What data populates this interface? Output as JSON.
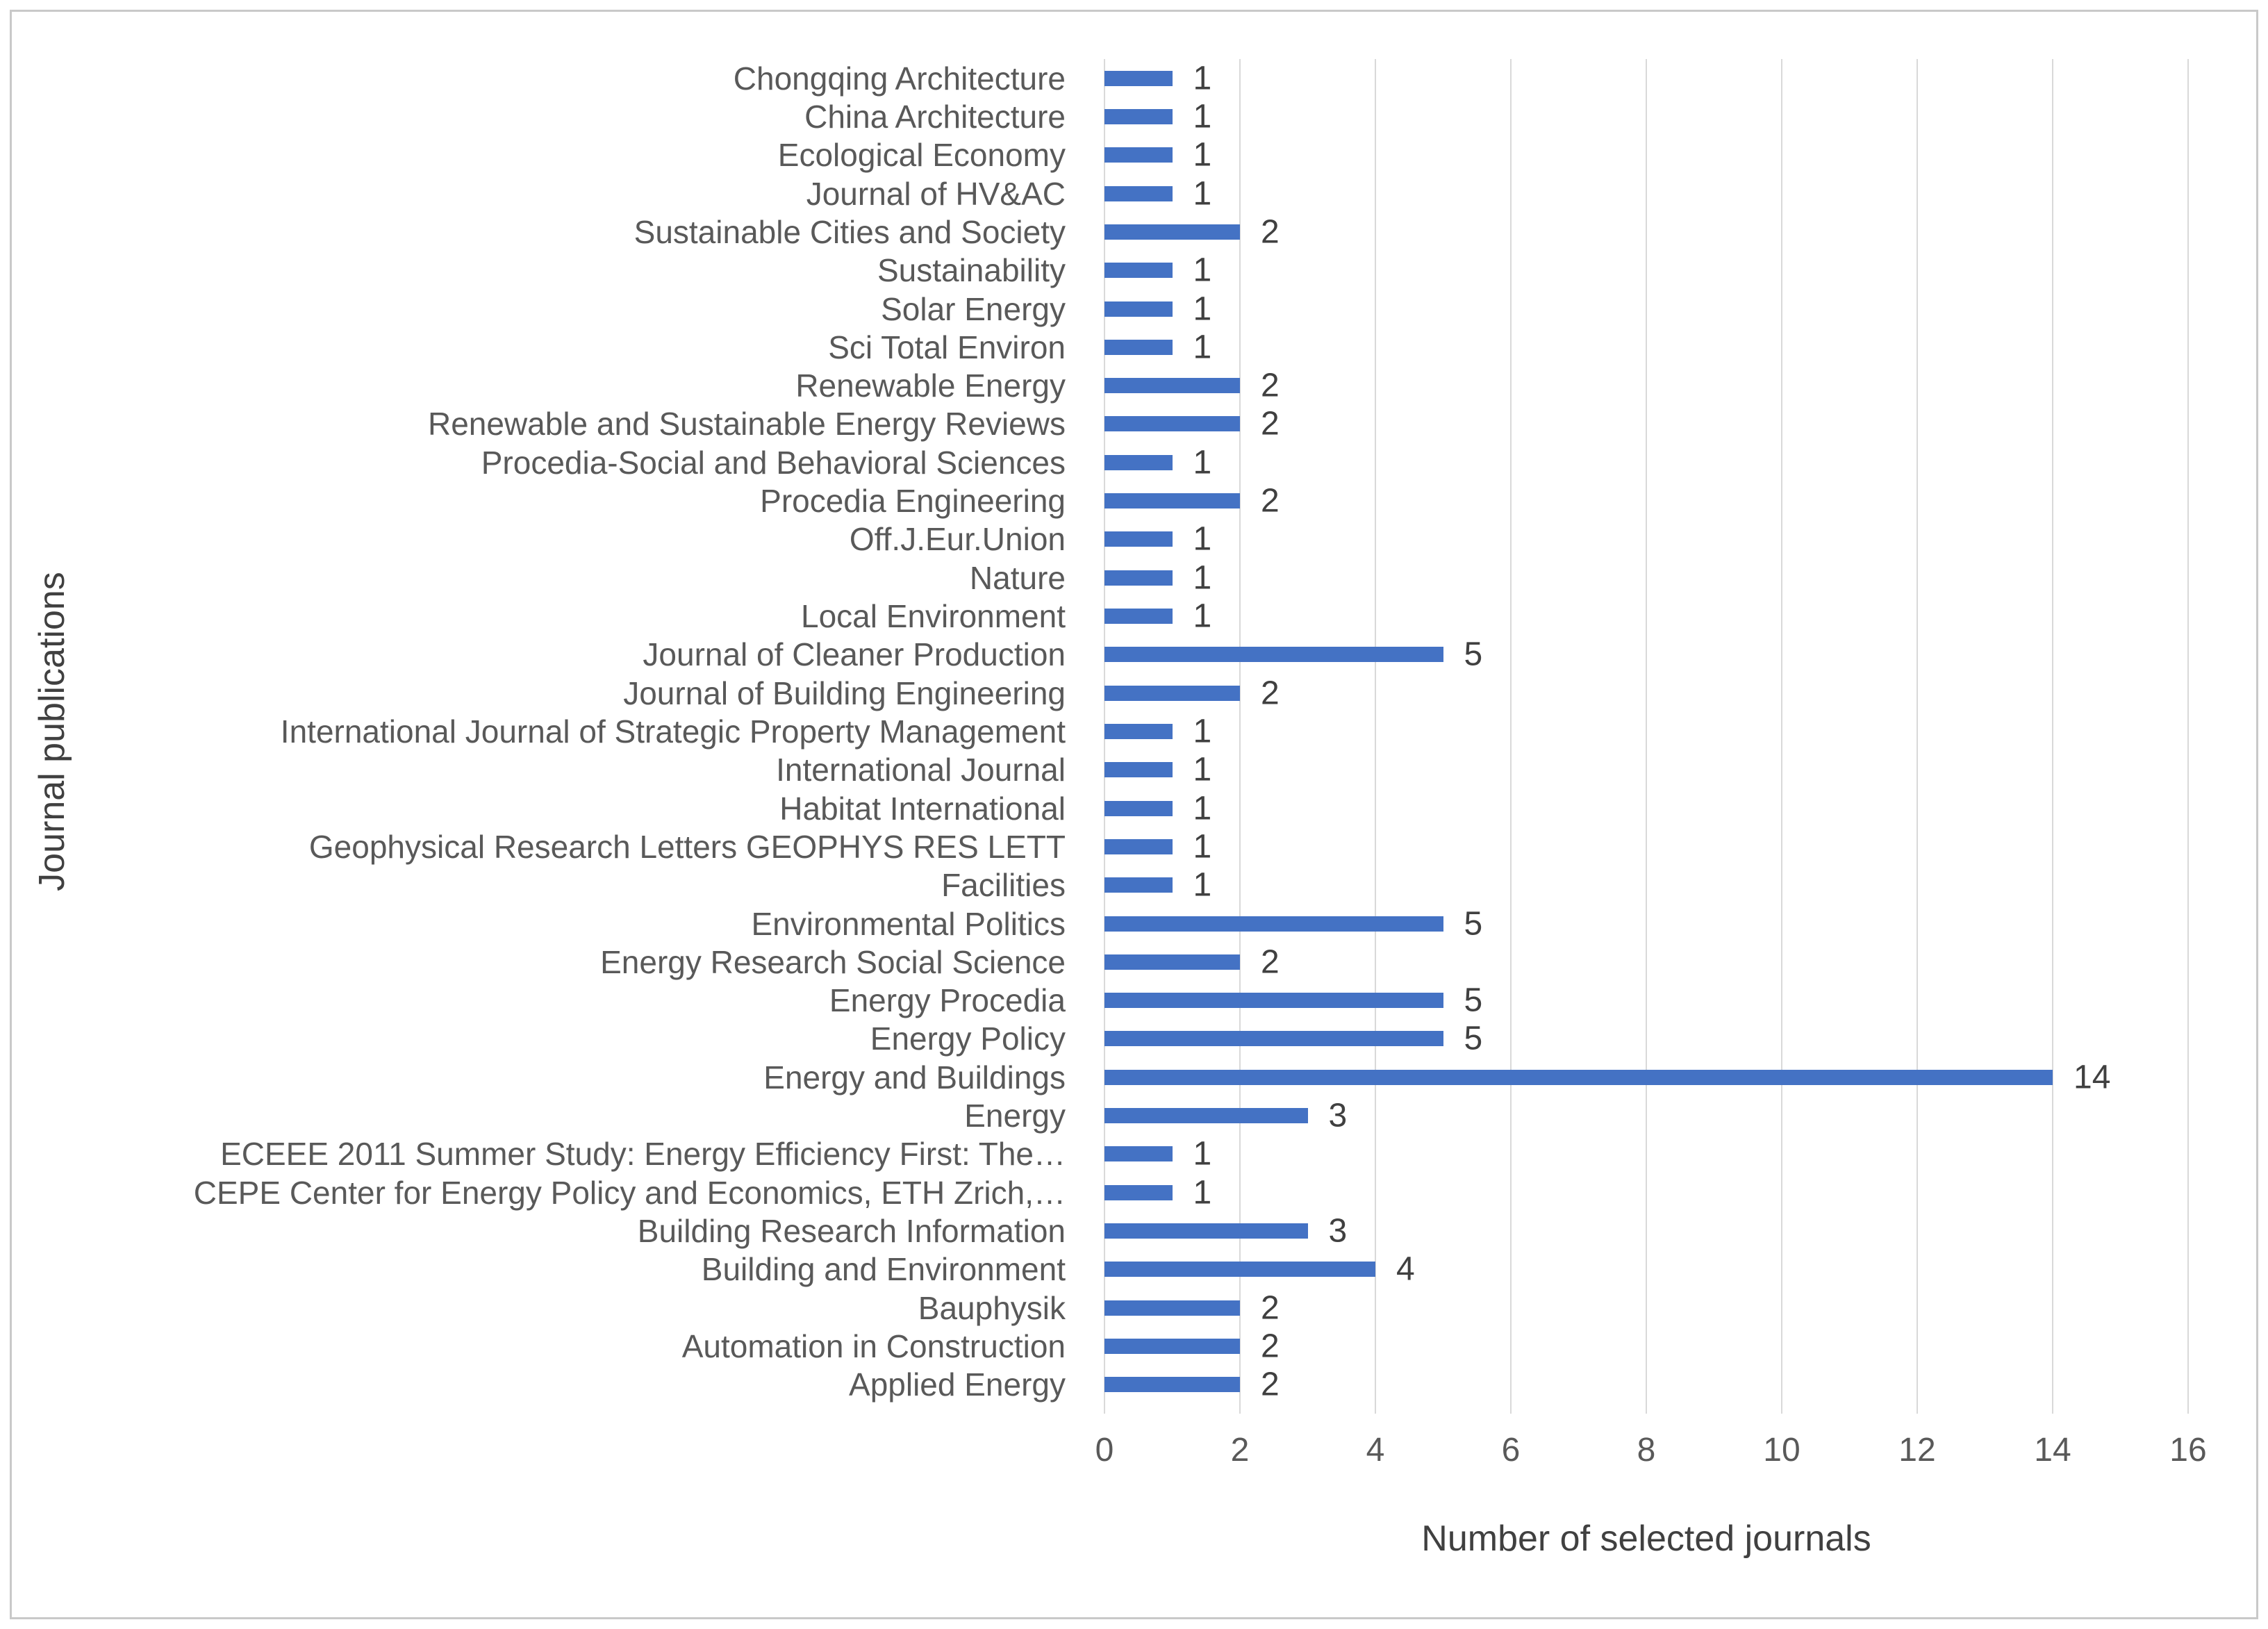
{
  "figure": {
    "x_axis_title": "Number of selected journals",
    "y_axis_title": "Journal publications"
  },
  "colors": {
    "bar": "#4472c4",
    "gridline": "#d9d9d9",
    "axis_text": "#595959",
    "data_label_text": "#404040",
    "frame_border": "#c9c9c9",
    "background": "#ffffff"
  },
  "chart_data": {
    "type": "bar",
    "orientation": "horizontal",
    "title": "",
    "xlabel": "Number of selected journals",
    "ylabel": "Journal publications",
    "xlim": [
      0,
      16
    ],
    "x_ticks": [
      0,
      2,
      4,
      6,
      8,
      10,
      12,
      14,
      16
    ],
    "grid": true,
    "legend": false,
    "data_labels": true,
    "categories": [
      "Chongqing Architecture",
      "China Architecture",
      "Ecological Economy",
      "Journal of HV&AC",
      "Sustainable Cities and Society",
      "Sustainability",
      "Solar Energy",
      "Sci Total Environ",
      "Renewable Energy",
      "Renewable and Sustainable Energy Reviews",
      "Procedia-Social and Behavioral Sciences",
      "Procedia Engineering",
      "Off.J.Eur.Union",
      "Nature",
      "Local Environment",
      "Journal of Cleaner Production",
      "Journal of Building Engineering",
      "International Journal of Strategic Property Management",
      "International Journal",
      "Habitat International",
      "Geophysical Research Letters GEOPHYS RES LETT",
      "Facilities",
      "Environmental Politics",
      "Energy Research Social Science",
      "Energy Procedia",
      "Energy Policy",
      "Energy and Buildings",
      "Energy",
      "ECEEE 2011 Summer Study: Energy Efficiency First: The…",
      "CEPE Center for Energy Policy and Economics, ETH Zrich,…",
      "Building Research Information",
      "Building and Environment",
      "Bauphysik",
      "Automation in Construction",
      "Applied Energy"
    ],
    "values": [
      1,
      1,
      1,
      1,
      2,
      1,
      1,
      1,
      2,
      2,
      1,
      2,
      1,
      1,
      1,
      5,
      2,
      1,
      1,
      1,
      1,
      1,
      5,
      2,
      5,
      5,
      14,
      3,
      1,
      1,
      3,
      4,
      2,
      2,
      2
    ]
  }
}
